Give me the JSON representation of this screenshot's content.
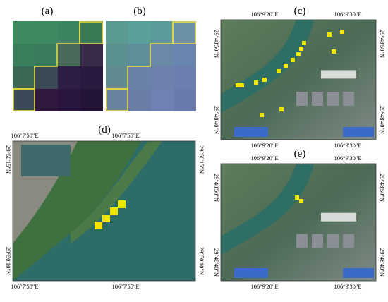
{
  "panels": [
    {
      "label": "(a)"
    },
    {
      "label": "(b)"
    },
    {
      "label": "(c)",
      "top": [
        "106°9'20\"E",
        "106°9'30\"E"
      ],
      "bottom": [
        "106°9'20\"E",
        "106°9'30\"E"
      ],
      "left": [
        "29°48'50\"N",
        "29°48'40\"N"
      ],
      "right": [
        "29°48'50\"N",
        "29°48'40\"N"
      ]
    },
    {
      "label": "(d)",
      "top": [
        "106°7'50\"E",
        "106°7'55\"E"
      ],
      "bottom": [
        "106°7'50\"E",
        "106°7'55\"E"
      ],
      "left": [
        "29°50'15\"N",
        "29°50'10\"N"
      ],
      "right": [
        "29°50'15\"N",
        "29°50'10\"N"
      ]
    },
    {
      "label": "(e)",
      "top": [
        "106°9'20\"E",
        "106°9'30\"E"
      ],
      "bottom": [
        "106°9'20\"E",
        "106°9'30\"E"
      ],
      "left": [
        "29°48'50\"N",
        "29°48'40\"N"
      ],
      "right": [
        "29°48'50\"N",
        "29°48'40\"N"
      ]
    }
  ]
}
